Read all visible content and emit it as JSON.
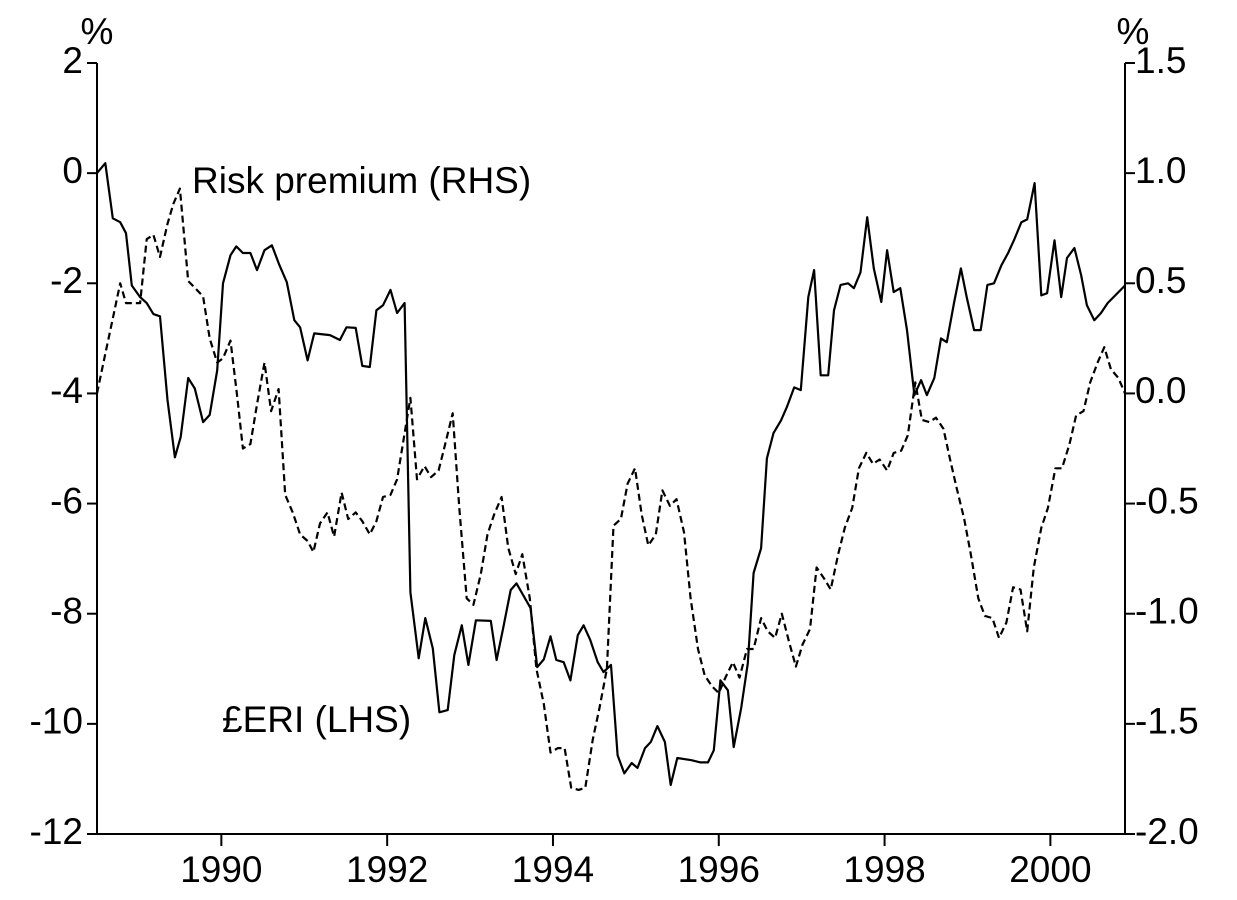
{
  "chart_data": {
    "type": "line",
    "ylabel": "%",
    "y2label": "%",
    "xlim": [
      1988.5,
      2000.9
    ],
    "xticks": [
      1990,
      1992,
      1994,
      1996,
      1998,
      2000
    ],
    "ylim": [
      -12,
      2
    ],
    "yticks": [
      2,
      0,
      -2,
      -4,
      -6,
      -8,
      -10,
      -12
    ],
    "y2lim": [
      -2,
      1.5
    ],
    "y2ticks": [
      1.5,
      {
        "value": 1,
        "label": "1.0"
      },
      0.5,
      {
        "value": 0,
        "label": "0.0"
      },
      -0.5,
      {
        "value": -1,
        "label": "-1.0"
      },
      -1.5,
      {
        "value": -2,
        "label": "-2.0"
      }
    ],
    "series": [
      {
        "name": "£ERI (LHS)",
        "color": "#000000",
        "dash": "solid",
        "x": [
          1988.5,
          1988.6,
          1988.69,
          1988.78,
          1988.85,
          1988.92,
          1989.02,
          1989.1,
          1989.18,
          1989.26,
          1989.35,
          1989.44,
          1989.51,
          1989.6,
          1989.68,
          1989.78,
          1989.86,
          1989.95,
          1990.02,
          1990.11,
          1990.18,
          1990.26,
          1990.35,
          1990.43,
          1990.52,
          1990.61,
          1990.7,
          1990.79,
          1990.88,
          1990.95,
          1991.04,
          1991.12,
          1991.31,
          1991.43,
          1991.51,
          1991.62,
          1991.7,
          1991.79,
          1991.87,
          1991.95,
          1992.04,
          1992.12,
          1992.21,
          1992.28,
          1992.38,
          1992.46,
          1992.55,
          1992.63,
          1992.73,
          1992.81,
          1992.9,
          1992.98,
          1993.07,
          1993.25,
          1993.32,
          1993.4,
          1993.49,
          1993.56,
          1993.64,
          1993.73,
          1993.81,
          1993.89,
          1993.97,
          1994.04,
          1994.13,
          1994.21,
          1994.3,
          1994.37,
          1994.45,
          1994.54,
          1994.61,
          1994.7,
          1994.78,
          1994.86,
          1994.95,
          1995.02,
          1995.11,
          1995.18,
          1995.26,
          1995.35,
          1995.42,
          1995.5,
          1995.67,
          1995.78,
          1995.87,
          1995.94,
          1996.02,
          1996.11,
          1996.18,
          1996.27,
          1996.35,
          1996.42,
          1996.51,
          1996.58,
          1996.66,
          1996.75,
          1996.82,
          1996.91,
          1996.99,
          1997.08,
          1997.15,
          1997.23,
          1997.32,
          1997.39,
          1997.47,
          1997.56,
          1997.63,
          1997.71,
          1997.79,
          1997.87,
          1997.96,
          1998.03,
          1998.11,
          1998.19,
          1998.27,
          1998.36,
          1998.44,
          1998.51,
          1998.6,
          1998.68,
          1998.75,
          1998.84,
          1998.92,
          1998.99,
          1999.08,
          1999.16,
          1999.24,
          1999.32,
          1999.41,
          1999.49,
          1999.56,
          1999.65,
          1999.72,
          1999.81,
          1999.89,
          1999.96,
          2000.05,
          2000.13,
          2000.2,
          2000.29,
          2000.37,
          2000.44,
          2000.53,
          2000.61,
          2000.69,
          2000.9
        ],
        "values": [
          0,
          0.18,
          -0.82,
          -0.89,
          -1.09,
          -2.04,
          -2.25,
          -2.36,
          -2.56,
          -2.6,
          -4.12,
          -5.16,
          -4.79,
          -3.72,
          -3.91,
          -4.52,
          -4.39,
          -3.58,
          -2,
          -1.49,
          -1.33,
          -1.45,
          -1.45,
          -1.76,
          -1.4,
          -1.31,
          -1.67,
          -1.98,
          -2.67,
          -2.8,
          -3.4,
          -2.91,
          -2.94,
          -3.03,
          -2.8,
          -2.81,
          -3.5,
          -3.52,
          -2.49,
          -2.4,
          -2.12,
          -2.54,
          -2.36,
          -7.61,
          -8.81,
          -8.08,
          -8.63,
          -9.79,
          -9.75,
          -8.75,
          -8.21,
          -8.93,
          -8.12,
          -8.13,
          -8.84,
          -8.26,
          -7.57,
          -7.45,
          -7.66,
          -7.9,
          -8.97,
          -8.83,
          -8.41,
          -8.84,
          -8.88,
          -9.21,
          -8.39,
          -8.21,
          -8.48,
          -8.88,
          -9.06,
          -8.93,
          -10.57,
          -10.9,
          -10.71,
          -10.8,
          -10.44,
          -10.33,
          -10.04,
          -10.33,
          -11.11,
          -10.62,
          -10.66,
          -10.7,
          -10.7,
          -10.48,
          -9.21,
          -9.39,
          -10.42,
          -9.71,
          -8.9,
          -7.26,
          -6.81,
          -5.18,
          -4.72,
          -4.49,
          -4.25,
          -3.89,
          -3.94,
          -2.25,
          -1.76,
          -3.67,
          -3.67,
          -2.49,
          -2.03,
          -2,
          -2.09,
          -1.8,
          -0.8,
          -1.73,
          -2.34,
          -1.4,
          -2.16,
          -2.09,
          -2.85,
          -4.03,
          -3.76,
          -4.03,
          -3.72,
          -3,
          -3.07,
          -2.34,
          -1.73,
          -2.25,
          -2.85,
          -2.85,
          -2.03,
          -2,
          -1.67,
          -1.45,
          -1.22,
          -0.89,
          -0.84,
          -0.18,
          -2.22,
          -2.18,
          -1.22,
          -2.25,
          -1.54,
          -1.36,
          -1.85,
          -2.4,
          -2.67,
          -2.54,
          -2.36,
          -2.04
        ]
      },
      {
        "name": "Risk premium (RHS)",
        "color": "#000000",
        "dash": "dashed",
        "axis": "y2",
        "x": [
          1988.5,
          1988.6,
          1988.69,
          1988.78,
          1988.85,
          1988.92,
          1989.02,
          1989.1,
          1989.18,
          1989.26,
          1989.35,
          1989.42,
          1989.5,
          1989.6,
          1989.68,
          1989.78,
          1989.86,
          1989.95,
          1990.02,
          1990.11,
          1990.19,
          1990.26,
          1990.35,
          1990.43,
          1990.52,
          1990.6,
          1990.69,
          1990.77,
          1990.86,
          1990.95,
          1991.04,
          1991.11,
          1991.19,
          1991.28,
          1991.36,
          1991.45,
          1991.53,
          1991.62,
          1991.7,
          1991.79,
          1991.87,
          1991.95,
          1992.04,
          1992.12,
          1992.28,
          1992.36,
          1992.45,
          1992.53,
          1992.62,
          1992.7,
          1992.79,
          1992.87,
          1992.96,
          1993.04,
          1993.13,
          1993.21,
          1993.29,
          1993.38,
          1993.46,
          1993.55,
          1993.63,
          1993.72,
          1993.8,
          1993.89,
          1993.97,
          1994.06,
          1994.14,
          1994.22,
          1994.31,
          1994.39,
          1994.48,
          1994.56,
          1994.65,
          1994.73,
          1994.82,
          1994.9,
          1994.99,
          1995.07,
          1995.15,
          1995.24,
          1995.32,
          1995.41,
          1995.49,
          1995.58,
          1995.66,
          1995.75,
          1995.83,
          1995.92,
          1996,
          1996.08,
          1996.17,
          1996.25,
          1996.34,
          1996.42,
          1996.51,
          1996.59,
          1996.68,
          1996.76,
          1996.85,
          1996.93,
          1997.01,
          1997.1,
          1997.18,
          1997.27,
          1997.35,
          1997.44,
          1997.52,
          1997.61,
          1997.69,
          1997.78,
          1997.86,
          1997.94,
          1998.03,
          1998.11,
          1998.2,
          1998.28,
          1998.37,
          1998.45,
          1998.54,
          1998.62,
          1998.71,
          1998.79,
          1998.87,
          1998.96,
          1999.04,
          1999.13,
          1999.21,
          1999.3,
          1999.38,
          1999.47,
          1999.55,
          1999.64,
          1999.72,
          1999.8,
          1999.89,
          1999.97,
          2000.06,
          2000.14,
          2000.23,
          2000.31,
          2000.4,
          2000.48,
          2000.57,
          2000.65,
          2000.73,
          2000.82,
          2000.9
        ],
        "values": [
          0,
          0.18,
          0.34,
          0.5,
          0.41,
          0.41,
          0.41,
          0.7,
          0.72,
          0.62,
          0.77,
          0.86,
          0.93,
          0.51,
          0.48,
          0.44,
          0.25,
          0.14,
          0.16,
          0.24,
          -0.01,
          -0.25,
          -0.23,
          -0.05,
          0.14,
          -0.08,
          0.02,
          -0.46,
          -0.54,
          -0.64,
          -0.67,
          -0.72,
          -0.59,
          -0.54,
          -0.65,
          -0.45,
          -0.57,
          -0.54,
          -0.58,
          -0.64,
          -0.58,
          -0.47,
          -0.46,
          -0.39,
          -0.02,
          -0.39,
          -0.33,
          -0.38,
          -0.35,
          -0.23,
          -0.09,
          -0.52,
          -0.93,
          -0.96,
          -0.82,
          -0.64,
          -0.55,
          -0.47,
          -0.7,
          -0.82,
          -0.73,
          -0.93,
          -1.25,
          -1.41,
          -1.63,
          -1.61,
          -1.61,
          -1.79,
          -1.8,
          -1.79,
          -1.57,
          -1.43,
          -1.25,
          -0.6,
          -0.57,
          -0.41,
          -0.34,
          -0.55,
          -0.69,
          -0.64,
          -0.44,
          -0.51,
          -0.48,
          -0.63,
          -0.93,
          -1.16,
          -1.28,
          -1.33,
          -1.36,
          -1.29,
          -1.22,
          -1.29,
          -1.16,
          -1.16,
          -1.02,
          -1.08,
          -1.11,
          -1,
          -1.13,
          -1.24,
          -1.14,
          -1.07,
          -0.79,
          -0.84,
          -0.89,
          -0.73,
          -0.61,
          -0.52,
          -0.34,
          -0.27,
          -0.32,
          -0.3,
          -0.35,
          -0.27,
          -0.26,
          -0.19,
          0.05,
          -0.12,
          -0.13,
          -0.11,
          -0.16,
          -0.3,
          -0.43,
          -0.57,
          -0.73,
          -0.93,
          -1.01,
          -1.02,
          -1.11,
          -1.04,
          -0.88,
          -0.89,
          -1.08,
          -0.79,
          -0.61,
          -0.52,
          -0.34,
          -0.34,
          -0.23,
          -0.1,
          -0.08,
          0.05,
          0.14,
          0.21,
          0.11,
          0.07,
          0
        ]
      }
    ]
  }
}
